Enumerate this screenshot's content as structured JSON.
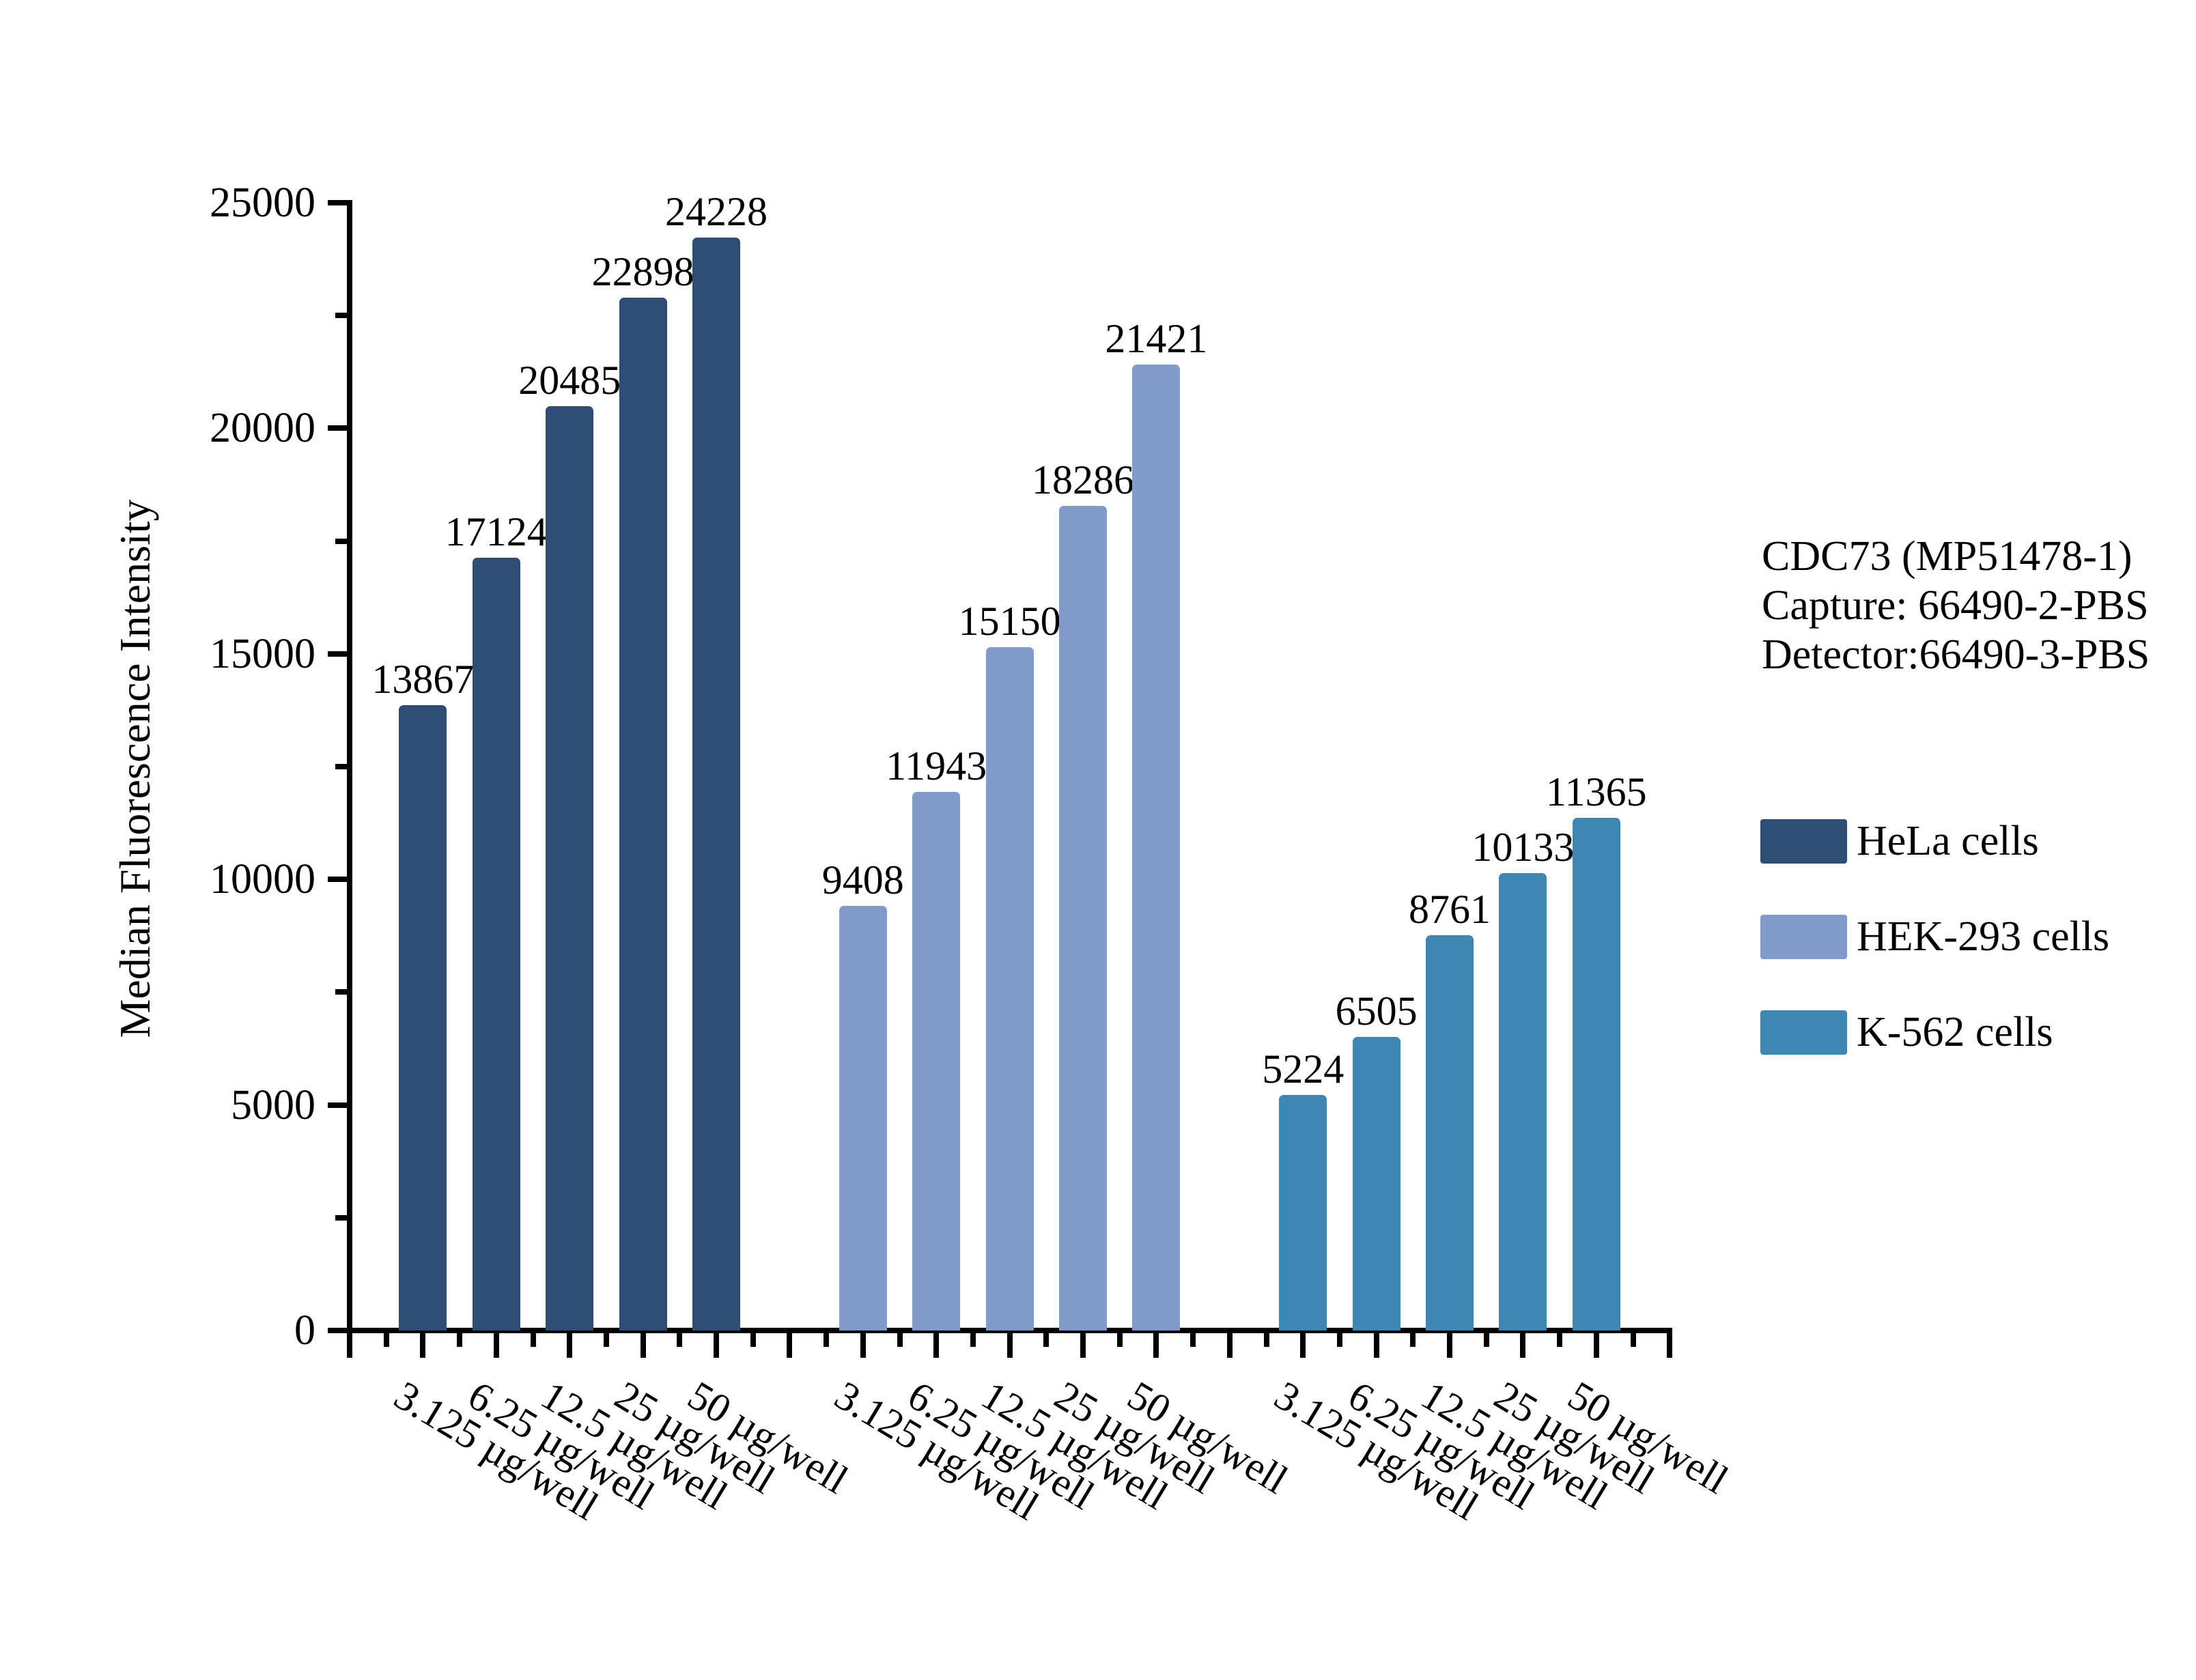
{
  "page": {
    "background": "#ffffff",
    "text_color": "#000000"
  },
  "y_axis": {
    "title": "Median Fluorescence Intensity",
    "tick_labels": [
      "25000",
      "20000",
      "15000",
      "10000",
      "5000",
      "0"
    ]
  },
  "annotation": {
    "lines": [
      "CDC73 (MP51478-1)",
      "Capture: 66490-2-PBS",
      "Detector:66490-3-PBS"
    ]
  },
  "chart_data": {
    "type": "bar",
    "title": "",
    "xlabel": "",
    "ylabel": "Median Fluorescence Intensity",
    "categories": [
      "3.125 µg/well",
      "6.25 µg/well",
      "12.5 µg/well",
      "25 µg/well",
      "50 µg/well"
    ],
    "series": [
      {
        "name": "HeLa cells",
        "color": "#2e4d75",
        "values": [
          13867,
          17124,
          20485,
          22898,
          24228
        ]
      },
      {
        "name": "HEK-293 cells",
        "color": "#7f9cca",
        "values": [
          9408,
          11943,
          15150,
          18286,
          21421
        ]
      },
      {
        "name": "K-562 cells",
        "color": "#3e87b5",
        "values": [
          5224,
          6505,
          8761,
          10133,
          11365
        ]
      }
    ],
    "ylim": [
      0,
      25000
    ],
    "y_major_step": 5000,
    "y_minor_step": 2500,
    "grid": false,
    "bar_value_labels": true,
    "legend_position": "right"
  }
}
